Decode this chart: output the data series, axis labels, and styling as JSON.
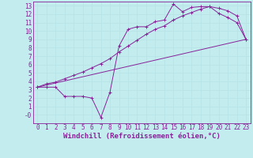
{
  "xlabel": "Windchill (Refroidissement éolien,°C)",
  "background_color": "#c2ecee",
  "grid_color": "#aadddf",
  "line_color": "#882299",
  "xlim": [
    -0.5,
    23.5
  ],
  "ylim": [
    -1.0,
    13.5
  ],
  "xticks": [
    0,
    1,
    2,
    3,
    4,
    5,
    6,
    7,
    8,
    9,
    10,
    11,
    12,
    13,
    14,
    15,
    16,
    17,
    18,
    19,
    20,
    21,
    22,
    23
  ],
  "yticks": [
    0,
    1,
    2,
    3,
    4,
    5,
    6,
    7,
    8,
    9,
    10,
    11,
    12,
    13
  ],
  "ytick_labels": [
    "-0",
    "1",
    "2",
    "3",
    "4",
    "5",
    "6",
    "7",
    "8",
    "9",
    "10",
    "11",
    "12",
    "13"
  ],
  "line1_x": [
    0,
    1,
    2,
    3,
    4,
    5,
    6,
    7,
    8,
    9,
    10,
    11,
    12,
    13,
    14,
    15,
    16,
    17,
    18,
    19,
    20,
    21,
    22,
    23
  ],
  "line1_y": [
    3.3,
    3.7,
    3.9,
    4.3,
    4.7,
    5.1,
    5.6,
    6.1,
    6.7,
    7.5,
    8.2,
    8.9,
    9.6,
    10.2,
    10.6,
    11.3,
    11.8,
    12.2,
    12.6,
    12.9,
    12.7,
    12.4,
    11.8,
    9.0
  ],
  "line2_x": [
    0,
    1,
    2,
    3,
    4,
    5,
    6,
    7,
    8,
    9,
    10,
    11,
    12,
    13,
    14,
    15,
    16,
    17,
    18,
    19,
    20,
    21,
    22,
    23
  ],
  "line2_y": [
    3.3,
    3.3,
    3.3,
    2.2,
    2.2,
    2.2,
    2.0,
    -0.3,
    2.7,
    8.2,
    10.2,
    10.5,
    10.5,
    11.1,
    11.3,
    13.2,
    12.3,
    12.8,
    12.9,
    12.9,
    12.1,
    11.6,
    11.0,
    9.0
  ],
  "line3_x": [
    0,
    23
  ],
  "line3_y": [
    3.3,
    9.0
  ],
  "font_size": 6.5,
  "tick_fontsize": 5.5
}
